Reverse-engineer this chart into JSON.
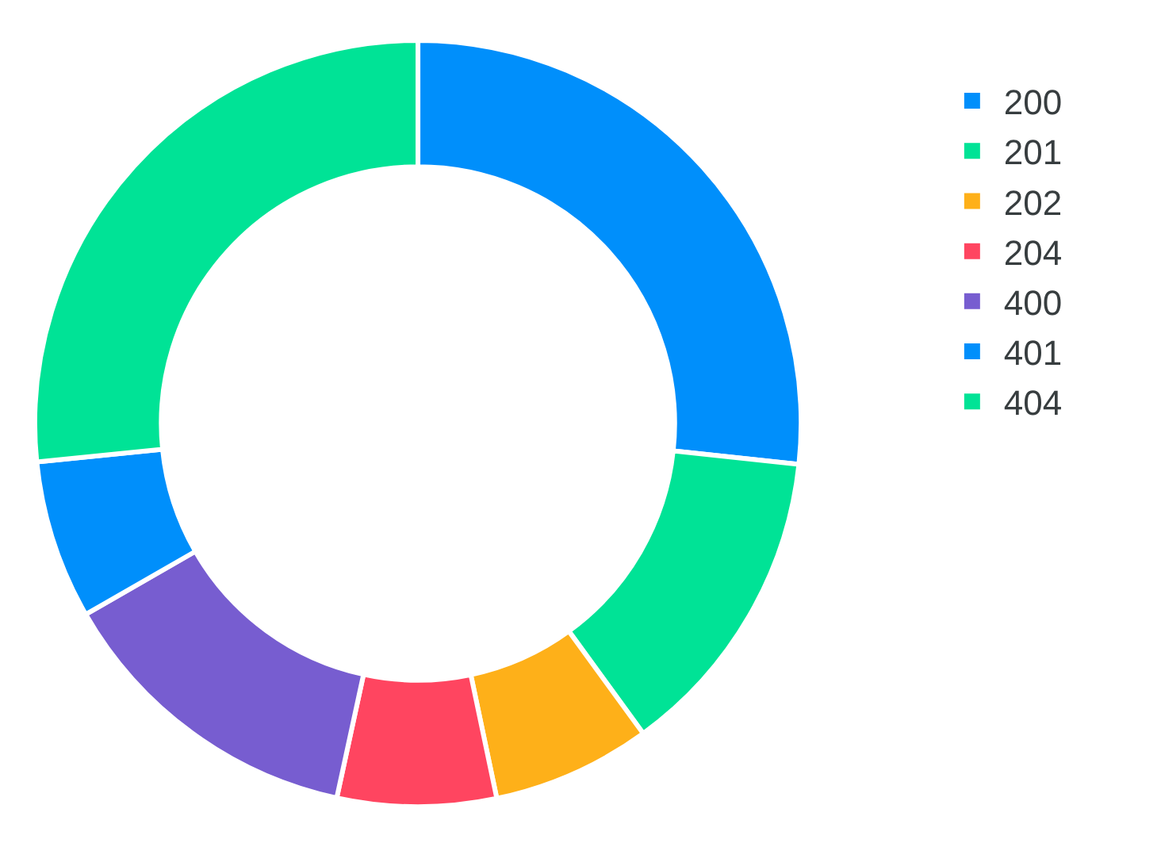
{
  "chart_data": {
    "type": "donut",
    "categories": [
      "200",
      "201",
      "202",
      "204",
      "400",
      "401",
      "404"
    ],
    "values": [
      26.7,
      13.3,
      6.7,
      6.7,
      13.3,
      6.7,
      26.6
    ],
    "colors": [
      "#008ffb",
      "#00e396",
      "#feb019",
      "#ff4560",
      "#775dd0",
      "#008ffb",
      "#00e396"
    ],
    "legend": "right"
  }
}
